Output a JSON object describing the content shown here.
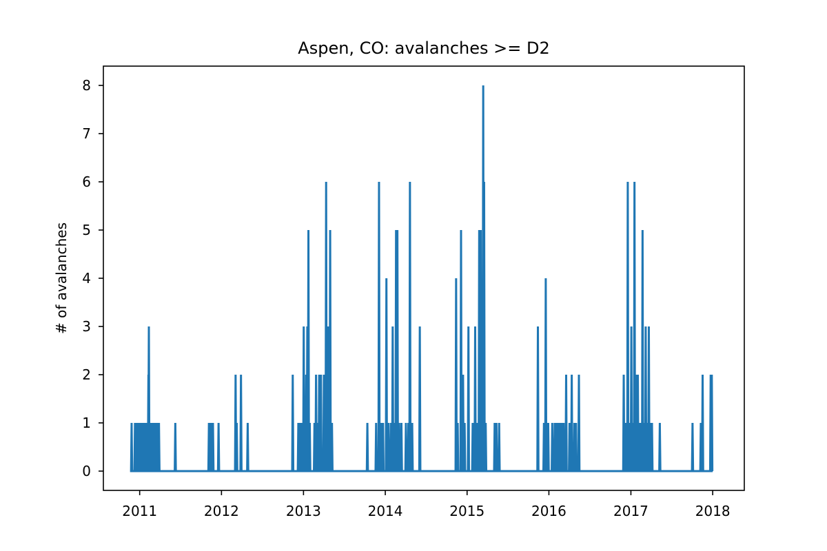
{
  "chart_data": {
    "type": "line",
    "title": "Aspen, CO: avalanches >= D2",
    "xlabel": "",
    "ylabel": "# of avalanches",
    "xlim": [
      "2010-07-23",
      "2018-05-22"
    ],
    "ylim": [
      -0.4,
      8.4
    ],
    "grid": false,
    "x_ticks": [
      "2011-01-01",
      "2012-01-01",
      "2013-01-01",
      "2014-01-01",
      "2015-01-01",
      "2016-01-01",
      "2017-01-01",
      "2018-01-01"
    ],
    "x_tick_labels": [
      "2011",
      "2012",
      "2013",
      "2014",
      "2015",
      "2016",
      "2017",
      "2018"
    ],
    "y_ticks": [
      0,
      1,
      2,
      3,
      4,
      5,
      6,
      7,
      8
    ],
    "y_tick_labels": [
      "0",
      "1",
      "2",
      "3",
      "4",
      "5",
      "6",
      "7",
      "8"
    ],
    "color": "#1f77b4",
    "series": [
      {
        "name": "",
        "x_range": [
          "2010-11-19",
          "2018-01-01"
        ],
        "baseline": 0,
        "points": [
          [
            "2010-11-26",
            1
          ],
          [
            "2010-12-11",
            1
          ],
          [
            "2010-12-18",
            1
          ],
          [
            "2010-12-25",
            1
          ],
          [
            "2011-01-03",
            1
          ],
          [
            "2011-01-08",
            1
          ],
          [
            "2011-01-14",
            1
          ],
          [
            "2011-01-20",
            1
          ],
          [
            "2011-01-28",
            1
          ],
          [
            "2011-02-04",
            1
          ],
          [
            "2011-02-09",
            2
          ],
          [
            "2011-02-11",
            3
          ],
          [
            "2011-02-15",
            1
          ],
          [
            "2011-02-20",
            1
          ],
          [
            "2011-02-26",
            1
          ],
          [
            "2011-03-03",
            1
          ],
          [
            "2011-03-09",
            1
          ],
          [
            "2011-03-15",
            1
          ],
          [
            "2011-03-21",
            1
          ],
          [
            "2011-03-28",
            1
          ],
          [
            "2011-06-09",
            1
          ],
          [
            "2011-11-06",
            1
          ],
          [
            "2011-11-12",
            1
          ],
          [
            "2011-11-18",
            1
          ],
          [
            "2011-11-24",
            1
          ],
          [
            "2011-12-19",
            1
          ],
          [
            "2012-03-04",
            2
          ],
          [
            "2012-03-09",
            1
          ],
          [
            "2012-03-28",
            2
          ],
          [
            "2012-04-27",
            1
          ],
          [
            "2012-11-14",
            2
          ],
          [
            "2012-12-09",
            1
          ],
          [
            "2012-12-17",
            1
          ],
          [
            "2012-12-25",
            1
          ],
          [
            "2013-01-02",
            3
          ],
          [
            "2013-01-08",
            1
          ],
          [
            "2013-01-13",
            2
          ],
          [
            "2013-01-18",
            3
          ],
          [
            "2013-01-23",
            5
          ],
          [
            "2013-01-29",
            1
          ],
          [
            "2013-02-19",
            1
          ],
          [
            "2013-02-26",
            2
          ],
          [
            "2013-03-06",
            1
          ],
          [
            "2013-03-12",
            2
          ],
          [
            "2013-03-20",
            2
          ],
          [
            "2013-04-02",
            2
          ],
          [
            "2013-04-12",
            6
          ],
          [
            "2013-04-21",
            3
          ],
          [
            "2013-04-30",
            5
          ],
          [
            "2013-05-08",
            1
          ],
          [
            "2013-10-13",
            1
          ],
          [
            "2013-11-21",
            1
          ],
          [
            "2013-12-04",
            6
          ],
          [
            "2013-12-13",
            1
          ],
          [
            "2013-12-22",
            1
          ],
          [
            "2014-01-06",
            4
          ],
          [
            "2014-01-16",
            1
          ],
          [
            "2014-01-27",
            1
          ],
          [
            "2014-02-03",
            3
          ],
          [
            "2014-02-12",
            1
          ],
          [
            "2014-02-18",
            5
          ],
          [
            "2014-02-24",
            5
          ],
          [
            "2014-03-04",
            1
          ],
          [
            "2014-03-14",
            1
          ],
          [
            "2014-04-03",
            1
          ],
          [
            "2014-04-14",
            1
          ],
          [
            "2014-04-21",
            6
          ],
          [
            "2014-05-01",
            1
          ],
          [
            "2014-06-04",
            3
          ],
          [
            "2014-11-13",
            4
          ],
          [
            "2014-11-20",
            1
          ],
          [
            "2014-12-05",
            5
          ],
          [
            "2014-12-14",
            2
          ],
          [
            "2014-12-21",
            1
          ],
          [
            "2015-01-07",
            3
          ],
          [
            "2015-01-26",
            1
          ],
          [
            "2015-02-06",
            3
          ],
          [
            "2015-02-15",
            1
          ],
          [
            "2015-02-24",
            5
          ],
          [
            "2015-03-03",
            5
          ],
          [
            "2015-03-10",
            1
          ],
          [
            "2015-03-14",
            8
          ],
          [
            "2015-03-18",
            6
          ],
          [
            "2015-03-25",
            1
          ],
          [
            "2015-05-04",
            1
          ],
          [
            "2015-05-12",
            1
          ],
          [
            "2015-05-24",
            1
          ],
          [
            "2015-11-13",
            3
          ],
          [
            "2015-12-10",
            1
          ],
          [
            "2015-12-18",
            4
          ],
          [
            "2015-12-29",
            1
          ],
          [
            "2016-01-16",
            1
          ],
          [
            "2016-01-27",
            1
          ],
          [
            "2016-02-04",
            1
          ],
          [
            "2016-02-13",
            1
          ],
          [
            "2016-02-20",
            1
          ],
          [
            "2016-02-27",
            1
          ],
          [
            "2016-03-07",
            1
          ],
          [
            "2016-03-18",
            2
          ],
          [
            "2016-04-02",
            1
          ],
          [
            "2016-04-12",
            2
          ],
          [
            "2016-04-24",
            1
          ],
          [
            "2016-05-01",
            1
          ],
          [
            "2016-05-14",
            2
          ],
          [
            "2016-11-30",
            2
          ],
          [
            "2016-12-09",
            1
          ],
          [
            "2016-12-18",
            6
          ],
          [
            "2016-12-27",
            1
          ],
          [
            "2017-01-03",
            3
          ],
          [
            "2017-01-10",
            1
          ],
          [
            "2017-01-17",
            6
          ],
          [
            "2017-01-25",
            2
          ],
          [
            "2017-02-01",
            2
          ],
          [
            "2017-02-08",
            1
          ],
          [
            "2017-02-14",
            1
          ],
          [
            "2017-02-22",
            5
          ],
          [
            "2017-03-01",
            1
          ],
          [
            "2017-03-08",
            3
          ],
          [
            "2017-03-15",
            1
          ],
          [
            "2017-03-22",
            3
          ],
          [
            "2017-03-29",
            1
          ],
          [
            "2017-04-05",
            1
          ],
          [
            "2017-05-10",
            1
          ],
          [
            "2017-10-03",
            1
          ],
          [
            "2017-11-09",
            1
          ],
          [
            "2017-11-17",
            2
          ],
          [
            "2017-12-23",
            2
          ],
          [
            "2017-12-28",
            2
          ]
        ]
      }
    ]
  }
}
